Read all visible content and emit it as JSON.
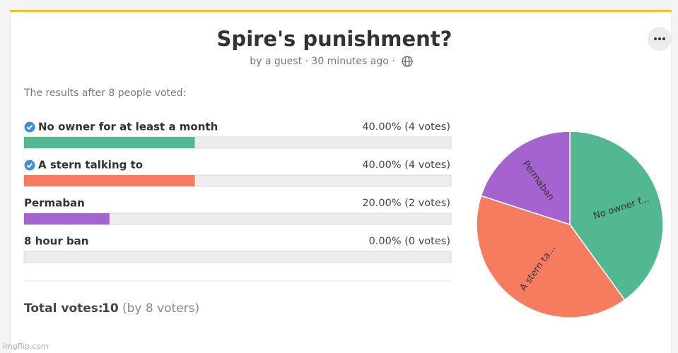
{
  "poll": {
    "title": "Spire's punishment?",
    "meta": "by a guest · 30 minutes ago ·",
    "results_intro": "The results after 8 people voted:",
    "options": [
      {
        "label": "No owner for at least a month",
        "checked": true,
        "percent": 40,
        "result_label": "40.00% (4 votes)",
        "color": "#52b891",
        "pie_label": "No owner f..."
      },
      {
        "label": "A stern talking to",
        "checked": true,
        "percent": 40,
        "result_label": "40.00% (4 votes)",
        "color": "#f77b5e",
        "pie_label": "A stern ta..."
      },
      {
        "label": "Permaban",
        "checked": false,
        "percent": 20,
        "result_label": "20.00% (2 votes)",
        "color": "#a463cf",
        "pie_label": "Permaban"
      },
      {
        "label": "8 hour ban",
        "checked": false,
        "percent": 0,
        "result_label": "0.00% (0 votes)"
      }
    ],
    "total_label": "Total votes:",
    "total": 10,
    "voters_label": "(by 8 voters)"
  },
  "watermark": "imgflip.com"
}
